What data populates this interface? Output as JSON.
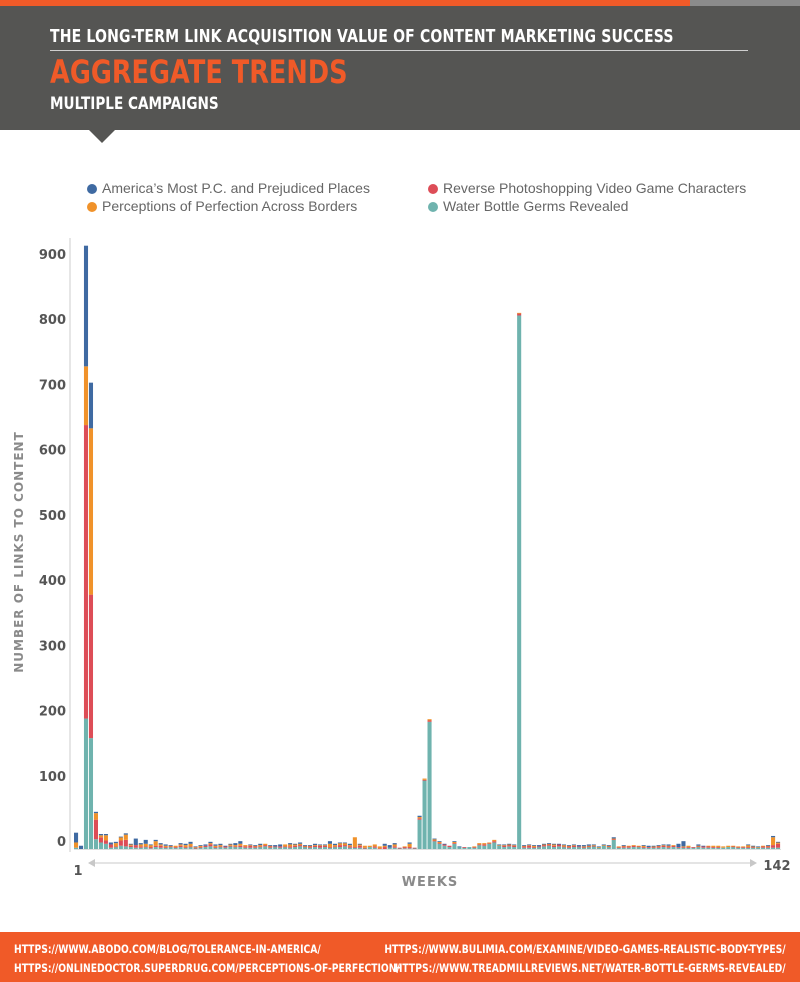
{
  "header": {
    "title": "THE LONG-TERM LINK ACQUISITION VALUE OF CONTENT MARKETING SUCCESS",
    "subtitle": "AGGREGATE TRENDS",
    "subtitle2": "MULTIPLE CAMPAIGNS"
  },
  "colors": {
    "america": "#3f6aa2",
    "perceptions": "#f0922a",
    "reverse": "#dd4d57",
    "water": "#6fb3ae",
    "accent": "#f05a28",
    "header_bg": "#555553"
  },
  "chart_data": {
    "type": "bar",
    "stacked": true,
    "xlabel": "WEEKS",
    "ylabel": "NUMBER OF LINKS TO CONTENT",
    "ylim": [
      0,
      900
    ],
    "yticks": [
      0,
      100,
      200,
      300,
      400,
      500,
      600,
      700,
      800,
      900
    ],
    "x_range_labels": [
      "1",
      "142"
    ],
    "legend_position": "top",
    "series": [
      {
        "name": "America’s Most P.C. and Prejudiced Places",
        "color": "#3f6aa2",
        "values": [
          15,
          5,
          185,
          70,
          2,
          2,
          2,
          3,
          2,
          1,
          2,
          1,
          10,
          2,
          6,
          1,
          2,
          2,
          2,
          1,
          0,
          2,
          2,
          3,
          1,
          1,
          2,
          2,
          2,
          2,
          1,
          1,
          3,
          4,
          0,
          1,
          1,
          2,
          0,
          1,
          2,
          3,
          0,
          2,
          1,
          2,
          1,
          1,
          2,
          1,
          1,
          4,
          2,
          1,
          1,
          2,
          0,
          1,
          0,
          0,
          0,
          0,
          3,
          4,
          2,
          0,
          0,
          2,
          0,
          2,
          0,
          0,
          1,
          1,
          1,
          0,
          1,
          1,
          0,
          0,
          0,
          0,
          0,
          0,
          0,
          1,
          1,
          1,
          1,
          0,
          1,
          1,
          1,
          2,
          1,
          1,
          1,
          1,
          1,
          1,
          1,
          2,
          2,
          2,
          1,
          1,
          1,
          1,
          2,
          0,
          1,
          0,
          0,
          0,
          1,
          2,
          1,
          1,
          1,
          2,
          0,
          5,
          8,
          0,
          0,
          2,
          1,
          0,
          0,
          0,
          0,
          0,
          0,
          0,
          0,
          1,
          1,
          1,
          0,
          1,
          2,
          1
        ]
      },
      {
        "name": "Perceptions of Perfection Across Borders",
        "color": "#f0922a",
        "values": [
          8,
          0,
          90,
          255,
          10,
          3,
          8,
          0,
          5,
          5,
          8,
          2,
          0,
          3,
          4,
          3,
          7,
          2,
          2,
          1,
          2,
          2,
          3,
          4,
          1,
          2,
          0,
          2,
          2,
          2,
          0,
          2,
          2,
          3,
          2,
          1,
          1,
          2,
          2,
          1,
          0,
          0,
          3,
          3,
          2,
          2,
          1,
          1,
          1,
          1,
          1,
          5,
          2,
          3,
          3,
          2,
          15,
          2,
          3,
          2,
          3,
          3,
          2,
          0,
          3,
          0,
          1,
          5,
          0,
          2,
          2,
          2,
          2,
          2,
          0,
          0,
          2,
          0,
          0,
          0,
          1,
          2,
          2,
          1,
          2,
          1,
          1,
          1,
          1,
          1,
          1,
          1,
          2,
          0,
          1,
          1,
          2,
          0,
          2,
          1,
          1,
          0,
          1,
          1,
          1,
          1,
          1,
          1,
          1,
          1,
          1,
          1,
          1,
          1,
          2,
          0,
          1,
          1,
          1,
          1,
          1,
          0,
          1,
          2,
          0,
          1,
          0,
          1,
          2,
          2,
          2,
          2,
          1,
          1,
          1,
          3,
          1,
          1,
          1,
          1,
          12,
          2
        ]
      },
      {
        "name": "Reverse Photoshopping Video Game Characters",
        "color": "#dd4d57",
        "values": [
          0,
          0,
          450,
          220,
          30,
          8,
          5,
          5,
          1,
          8,
          10,
          2,
          4,
          2,
          1,
          2,
          2,
          3,
          1,
          1,
          1,
          2,
          1,
          1,
          1,
          1,
          2,
          3,
          1,
          1,
          2,
          1,
          1,
          2,
          2,
          3,
          2,
          1,
          2,
          2,
          1,
          2,
          1,
          2,
          2,
          2,
          1,
          2,
          2,
          3,
          2,
          1,
          1,
          3,
          2,
          2,
          1,
          3,
          1,
          0,
          2,
          1,
          3,
          0,
          2,
          1,
          2,
          2,
          1,
          2,
          1,
          2,
          1,
          1,
          2,
          2,
          1,
          0,
          1,
          0,
          1,
          1,
          2,
          1,
          2,
          0,
          2,
          2,
          2,
          3,
          2,
          3,
          1,
          1,
          2,
          2,
          2,
          3,
          1,
          2,
          2,
          1,
          1,
          1,
          1,
          0,
          0,
          1,
          1,
          1,
          2,
          2,
          2,
          1,
          1,
          1,
          1,
          2,
          2,
          2,
          2,
          1,
          1,
          1,
          1,
          1,
          2,
          2,
          1,
          1,
          0,
          0,
          1,
          1,
          1,
          1,
          1,
          0,
          2,
          2,
          4,
          6
        ]
      },
      {
        "name": "Water Bottle Germs Revealed",
        "color": "#6fb3ae",
        "values": [
          2,
          0,
          200,
          170,
          15,
          10,
          8,
          2,
          3,
          5,
          4,
          3,
          2,
          2,
          3,
          1,
          3,
          2,
          2,
          3,
          2,
          3,
          2,
          3,
          1,
          2,
          3,
          4,
          2,
          3,
          2,
          4,
          3,
          3,
          2,
          2,
          2,
          3,
          4,
          2,
          3,
          2,
          3,
          2,
          3,
          4,
          3,
          2,
          3,
          2,
          3,
          2,
          3,
          3,
          4,
          2,
          2,
          2,
          1,
          3,
          2,
          0,
          0,
          2,
          2,
          1,
          1,
          1,
          1,
          45,
          105,
          195,
          12,
          8,
          5,
          3,
          8,
          3,
          2,
          3,
          2,
          6,
          5,
          8,
          10,
          5,
          3,
          4,
          3,
          818,
          2,
          2,
          2,
          3,
          4,
          5,
          3,
          4,
          3,
          2,
          3,
          3,
          2,
          3,
          4,
          2,
          5,
          3,
          14,
          2,
          2,
          2,
          3,
          3,
          2,
          2,
          2,
          2,
          3,
          2,
          3,
          2,
          2,
          2,
          2,
          3,
          2,
          2,
          2,
          2,
          2,
          3,
          3,
          2,
          2,
          2,
          2,
          2,
          2,
          2,
          2,
          2
        ]
      }
    ]
  },
  "sources": {
    "left1": "HTTPS://WWW.ABODO.COM/BLOG/TOLERANCE-IN-AMERICA/",
    "left2": "HTTPS://ONLINEDOCTOR.SUPERDRUG.COM/PERCEPTIONS-OF-PERFECTION/",
    "right1": "HTTPS://WWW.BULIMIA.COM/EXAMINE/VIDEO-GAMES-REALISTIC-BODY-TYPES/",
    "right2": "HTTPS://WWW.TREADMILLREVIEWS.NET/WATER-BOTTLE-GERMS-REVEALED/"
  }
}
